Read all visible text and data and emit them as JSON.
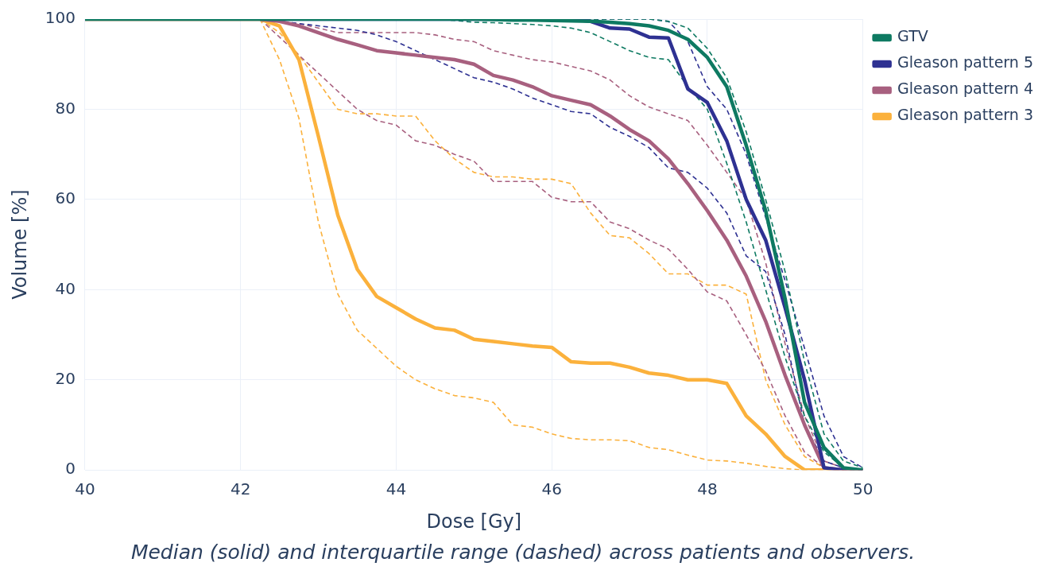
{
  "chart_data": {
    "type": "line",
    "xlabel": "Dose [Gy]",
    "ylabel": "Volume [%]",
    "annotations": [
      "Median (solid) and interquartile range (dashed) across patients and observers."
    ],
    "x": [
      40,
      42,
      42.25,
      42.5,
      42.75,
      43,
      43.25,
      43.5,
      43.75,
      44,
      44.25,
      44.5,
      44.75,
      45,
      45.25,
      45.5,
      45.75,
      46,
      46.25,
      46.5,
      46.75,
      47,
      47.25,
      47.5,
      47.75,
      48,
      48.25,
      48.5,
      48.75,
      49,
      49.25,
      49.5,
      49.75,
      50
    ],
    "xlim": [
      40,
      50
    ],
    "xticks": [
      40,
      42,
      44,
      46,
      48,
      50
    ],
    "ylim": [
      0,
      100
    ],
    "yticks": [
      0,
      20,
      40,
      60,
      80,
      100
    ],
    "grid": true,
    "legend": "top right",
    "marker": "none",
    "series": [
      {
        "color": "#0e7a62",
        "line_style": "dashed",
        "values": [
          100,
          100,
          100,
          100,
          100,
          100,
          100,
          100,
          100,
          100,
          100,
          100,
          99.7,
          99.3,
          99.2,
          99,
          98.8,
          98.5,
          98,
          97,
          95,
          93,
          91.5,
          91,
          85,
          80,
          68,
          55,
          40,
          25,
          12,
          4,
          0.5,
          0
        ]
      },
      {
        "color": "#0e7a62",
        "line_style": "dashed",
        "values": [
          100,
          100,
          100,
          100,
          100,
          100,
          100,
          100,
          100,
          100,
          100,
          100,
          100,
          100,
          100,
          100,
          100,
          100,
          100,
          100,
          100,
          100,
          100,
          99.5,
          98,
          93.5,
          87,
          75,
          60,
          44,
          24,
          8,
          2,
          0.5
        ]
      },
      {
        "color": "#2e3192",
        "line_style": "dashed",
        "values": [
          null,
          null,
          100,
          99.5,
          99,
          98.5,
          98,
          97.5,
          96.5,
          95,
          93,
          91,
          89,
          87,
          86,
          84.5,
          82.5,
          81,
          79.5,
          79,
          76,
          74,
          71.5,
          67,
          66,
          62.5,
          57,
          47.5,
          44,
          30,
          10,
          2,
          0.5,
          0
        ]
      },
      {
        "color": "#2e3192",
        "line_style": "dashed",
        "values": [
          null,
          null,
          100,
          100,
          100,
          100,
          100,
          100,
          100,
          100,
          100,
          100,
          100,
          100,
          100,
          100,
          100,
          100,
          100,
          100,
          100,
          100,
          100,
          99.5,
          95,
          85,
          80,
          70,
          56,
          42,
          27,
          12,
          3,
          0.5
        ]
      },
      {
        "color": "#a8607f",
        "line_style": "dashed",
        "values": [
          100,
          100,
          100,
          99.5,
          99,
          98,
          97,
          97,
          97,
          97,
          97,
          96.5,
          95.5,
          95,
          93,
          92,
          91,
          90.5,
          89.5,
          88.5,
          86.5,
          83,
          80.5,
          79,
          77.5,
          72,
          66,
          60,
          46,
          28,
          12,
          2,
          0.5,
          0
        ]
      },
      {
        "color": "#a8607f",
        "line_style": "dashed",
        "values": [
          100,
          100,
          100,
          96,
          92,
          88,
          84,
          80,
          77.5,
          76.5,
          73,
          72,
          70,
          68.5,
          64,
          64,
          64,
          60.5,
          59.5,
          59.5,
          55,
          53.5,
          51,
          49,
          44.5,
          39.5,
          37.5,
          30,
          22,
          12,
          4,
          0.5,
          0,
          0
        ]
      },
      {
        "color": "#fbb13c",
        "line_style": "dashed",
        "values": [
          100,
          100,
          100,
          97,
          92,
          86,
          80,
          79,
          79,
          78.5,
          78.5,
          73,
          69,
          66,
          65,
          65,
          64.5,
          64.5,
          63.5,
          57,
          52,
          51.5,
          48,
          43.5,
          43.5,
          41,
          41,
          39,
          20,
          10,
          3,
          0.5,
          0,
          0
        ]
      },
      {
        "color": "#fbb13c",
        "line_style": "dashed",
        "values": [
          100,
          100,
          100,
          91,
          78,
          55,
          39,
          31,
          27,
          23,
          20,
          18,
          16.5,
          16,
          15,
          10,
          9.5,
          8,
          7,
          6.7,
          6.7,
          6.5,
          5,
          4.5,
          3.3,
          2.2,
          2,
          1.5,
          0.8,
          0.3,
          0,
          0,
          0,
          0
        ]
      },
      {
        "name": "GTV",
        "color": "#0e7a62",
        "values": [
          100,
          100,
          100,
          100,
          100,
          100,
          100,
          100,
          100,
          100,
          100,
          100,
          100,
          100,
          99.9,
          99.8,
          99.8,
          99.7,
          99.6,
          99.5,
          99.3,
          99,
          98.5,
          97.5,
          95.5,
          91.5,
          85,
          72,
          57.5,
          38,
          15,
          5,
          0.5,
          0
        ]
      },
      {
        "name": "Gleason pattern 5",
        "color": "#2e3192",
        "values": [
          null,
          null,
          100,
          100,
          100,
          100,
          100,
          100,
          100,
          100,
          100,
          100,
          100,
          100,
          100,
          100,
          100,
          100,
          100,
          99.5,
          98,
          97.8,
          96,
          95.8,
          84.5,
          81.5,
          73,
          60,
          51,
          36,
          20,
          0.5,
          0,
          0
        ]
      },
      {
        "name": "Gleason pattern 4",
        "color": "#a8607f",
        "values": [
          100,
          100,
          100,
          99.5,
          98.5,
          97,
          95.5,
          94.3,
          93,
          92.5,
          92,
          91.5,
          91,
          90,
          87.5,
          86.5,
          85,
          83,
          82,
          81,
          78.5,
          75.5,
          73,
          69,
          63.5,
          57.5,
          51,
          43,
          33,
          21,
          10,
          0.5,
          0,
          0
        ]
      },
      {
        "name": "Gleason pattern 3",
        "color": "#fbb13c",
        "values": [
          100,
          100,
          100,
          98.5,
          91,
          74,
          56.5,
          44.5,
          38.5,
          36,
          33.5,
          31.5,
          31,
          29,
          28.5,
          28,
          27.5,
          27.2,
          24,
          23.7,
          23.7,
          22.8,
          21.5,
          21,
          20,
          20,
          19.2,
          12,
          8,
          3,
          0,
          0,
          0,
          0
        ]
      }
    ]
  }
}
